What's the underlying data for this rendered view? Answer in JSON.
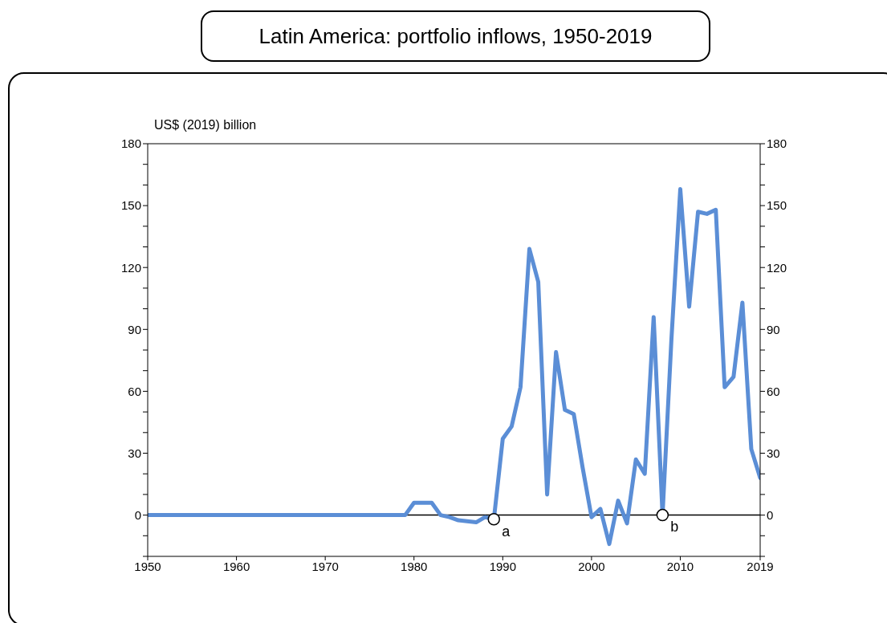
{
  "chart_data": {
    "type": "line",
    "title": "Latin America: portfolio inflows, 1950-2019",
    "ylabel": "US$ (2019) billion",
    "x": [
      1950,
      1951,
      1952,
      1953,
      1954,
      1955,
      1956,
      1957,
      1958,
      1959,
      1960,
      1961,
      1962,
      1963,
      1964,
      1965,
      1966,
      1967,
      1968,
      1969,
      1970,
      1971,
      1972,
      1973,
      1974,
      1975,
      1976,
      1977,
      1978,
      1979,
      1980,
      1981,
      1982,
      1983,
      1984,
      1985,
      1986,
      1987,
      1988,
      1989,
      1990,
      1991,
      1992,
      1993,
      1994,
      1995,
      1996,
      1997,
      1998,
      1999,
      2000,
      2001,
      2002,
      2003,
      2004,
      2005,
      2006,
      2007,
      2008,
      2009,
      2010,
      2011,
      2012,
      2013,
      2014,
      2015,
      2016,
      2017,
      2018,
      2019
    ],
    "series": [
      {
        "color": "#5b8ed6",
        "values": [
          0,
          0,
          0,
          0,
          0,
          0,
          0,
          0,
          0,
          0,
          0,
          0,
          0,
          0,
          0,
          0,
          0,
          0,
          0,
          0,
          0,
          0,
          0,
          0,
          0,
          0,
          0,
          0,
          0,
          0,
          6,
          6,
          6,
          0,
          -1,
          -2.5,
          -3,
          -3.5,
          -1,
          -2,
          37,
          43,
          62,
          129,
          113,
          10,
          79,
          51,
          49,
          23,
          -1,
          3,
          -14,
          7,
          -4,
          27,
          20,
          96,
          0,
          85,
          158,
          101,
          147,
          146,
          148,
          62,
          67,
          103,
          32,
          18
        ]
      }
    ],
    "xlim": [
      1950,
      2019
    ],
    "xticks": [
      1950,
      1960,
      1970,
      1980,
      1990,
      2000,
      2010,
      2019
    ],
    "ylim": [
      -20,
      180
    ],
    "yticks": [
      {
        "value": -20,
        "label": null
      },
      {
        "value": -10,
        "label": null
      },
      0,
      {
        "value": 10,
        "label": null
      },
      {
        "value": 20,
        "label": null
      },
      30,
      {
        "value": 40,
        "label": null
      },
      {
        "value": 50,
        "label": null
      },
      60,
      {
        "value": 70,
        "label": null
      },
      {
        "value": 80,
        "label": null
      },
      90,
      {
        "value": 100,
        "label": null
      },
      {
        "value": 110,
        "label": null
      },
      120,
      {
        "value": 130,
        "label": null
      },
      {
        "value": 140,
        "label": null
      },
      150,
      {
        "value": 160,
        "label": null
      },
      {
        "value": 170,
        "label": null
      },
      180
    ],
    "y2lim": [
      -20,
      180
    ],
    "y2ticks": [
      {
        "value": -20,
        "label": null
      },
      {
        "value": -10,
        "label": null
      },
      0,
      {
        "value": 10,
        "label": null
      },
      {
        "value": 20,
        "label": null
      },
      30,
      {
        "value": 40,
        "label": null
      },
      {
        "value": 50,
        "label": null
      },
      60,
      {
        "value": 70,
        "label": null
      },
      {
        "value": 80,
        "label": null
      },
      90,
      {
        "value": 100,
        "label": null
      },
      {
        "value": 110,
        "label": null
      },
      120,
      {
        "value": 130,
        "label": null
      },
      {
        "value": 140,
        "label": null
      },
      150,
      {
        "value": 160,
        "label": null
      },
      {
        "value": 170,
        "label": null
      },
      180
    ],
    "ref_lines": [
      {
        "axis": "y",
        "value": 0,
        "color": "#000000"
      }
    ],
    "annotations": [
      {
        "text": "a",
        "x": 1989,
        "y": -2
      },
      {
        "text": "b",
        "x": 2008,
        "y": 0
      }
    ],
    "marker": "none",
    "line_style": "solid"
  }
}
